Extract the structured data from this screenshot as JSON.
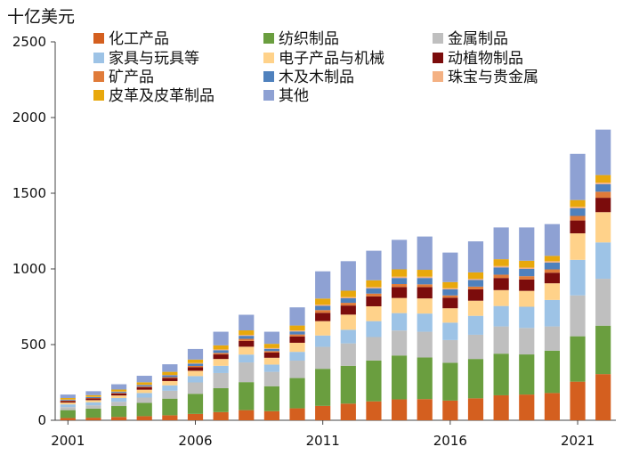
{
  "chart_data": {
    "type": "bar",
    "stacked": true,
    "unit_label": "十亿美元",
    "title": "",
    "xlabel": "",
    "ylabel": "",
    "ylim": [
      0,
      2500
    ],
    "yticks": [
      0,
      500,
      1000,
      1500,
      2000,
      2500
    ],
    "x_tick_labels": [
      "2001",
      "2006",
      "2011",
      "2016",
      "2021"
    ],
    "x_tick_years": [
      2001,
      2006,
      2011,
      2016,
      2021
    ],
    "grid": false,
    "legend_position": "top-left",
    "categories": [
      2001,
      2002,
      2003,
      2004,
      2005,
      2006,
      2007,
      2008,
      2009,
      2010,
      2011,
      2012,
      2013,
      2014,
      2015,
      2016,
      2017,
      2018,
      2019,
      2020,
      2021,
      2022
    ],
    "series": [
      {
        "name": "化工产品",
        "color": "#d45f1f",
        "values": [
          15,
          17,
          22,
          27,
          33,
          42,
          54,
          67,
          60,
          79,
          95,
          110,
          125,
          138,
          140,
          130,
          145,
          165,
          170,
          180,
          255,
          305
        ]
      },
      {
        "name": "纺织制品",
        "color": "#6a9e3f",
        "values": [
          52,
          60,
          72,
          88,
          110,
          133,
          158,
          185,
          165,
          200,
          245,
          250,
          270,
          290,
          275,
          250,
          260,
          275,
          265,
          280,
          300,
          320
        ]
      },
      {
        "name": "金属制品",
        "color": "#bfbfbf",
        "values": [
          20,
          22,
          28,
          35,
          52,
          75,
          100,
          130,
          95,
          115,
          145,
          148,
          155,
          165,
          170,
          150,
          160,
          180,
          175,
          160,
          270,
          310
        ]
      },
      {
        "name": "家具与玩具等",
        "color": "#9dc3e6",
        "values": [
          18,
          20,
          25,
          30,
          36,
          42,
          48,
          52,
          48,
          58,
          75,
          90,
          105,
          115,
          120,
          115,
          125,
          135,
          140,
          175,
          235,
          240
        ]
      },
      {
        "name": "电子产品与机械",
        "color": "#ffd28a",
        "values": [
          12,
          14,
          17,
          22,
          28,
          35,
          45,
          52,
          45,
          60,
          95,
          100,
          98,
          100,
          100,
          95,
          100,
          105,
          105,
          110,
          175,
          200
        ]
      },
      {
        "name": "动植物制品",
        "color": "#7b0c0c",
        "values": [
          10,
          11,
          13,
          16,
          20,
          24,
          30,
          38,
          34,
          42,
          55,
          60,
          65,
          72,
          75,
          70,
          75,
          80,
          75,
          70,
          85,
          95
        ]
      },
      {
        "name": "矿产品",
        "color": "#e07b39",
        "values": [
          3,
          3,
          4,
          5,
          6,
          8,
          10,
          14,
          10,
          13,
          18,
          18,
          19,
          20,
          18,
          15,
          18,
          22,
          22,
          22,
          30,
          40
        ]
      },
      {
        "name": "木及木制品",
        "color": "#4f81bd",
        "values": [
          5,
          6,
          7,
          9,
          12,
          15,
          18,
          20,
          15,
          20,
          28,
          30,
          35,
          40,
          42,
          40,
          44,
          48,
          48,
          45,
          50,
          50
        ]
      },
      {
        "name": "珠宝与贵金属",
        "color": "#f4b183",
        "values": [
          2,
          2,
          2,
          3,
          3,
          4,
          5,
          6,
          5,
          6,
          8,
          8,
          8,
          9,
          9,
          8,
          8,
          9,
          9,
          9,
          10,
          10
        ]
      },
      {
        "name": "皮革及皮革制品",
        "color": "#e8a80c",
        "values": [
          10,
          11,
          13,
          16,
          20,
          23,
          27,
          30,
          28,
          33,
          40,
          42,
          45,
          48,
          45,
          40,
          42,
          45,
          45,
          35,
          45,
          50
        ]
      },
      {
        "name": "其他",
        "color": "#8ea1d3",
        "values": [
          23,
          26,
          35,
          43,
          50,
          70,
          90,
          103,
          80,
          120,
          180,
          195,
          195,
          195,
          220,
          195,
          205,
          210,
          220,
          210,
          305,
          300
        ]
      }
    ]
  }
}
